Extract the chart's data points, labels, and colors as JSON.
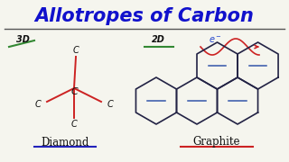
{
  "title": "Allotropes of Carbon",
  "title_color": "#1111CC",
  "title_fontsize": 15,
  "bg_color": "#F5F5EE",
  "diamond_label": "Diamond",
  "graphite_label": "Graphite",
  "label_color": "#111111",
  "label_fontsize": 8.5,
  "underline_diamond_color": "#2222BB",
  "underline_graphite_color": "#CC2222",
  "diamond_bond_color": "#CC2222",
  "diamond_c_color": "#111111",
  "hex_color": "#222244",
  "hex_inner_color": "#3355AA",
  "green_line_color": "#338833",
  "tag_color": "#111111",
  "eminus_color": "#2244CC",
  "arrow_color": "#CC2222",
  "divider_color": "#555555"
}
